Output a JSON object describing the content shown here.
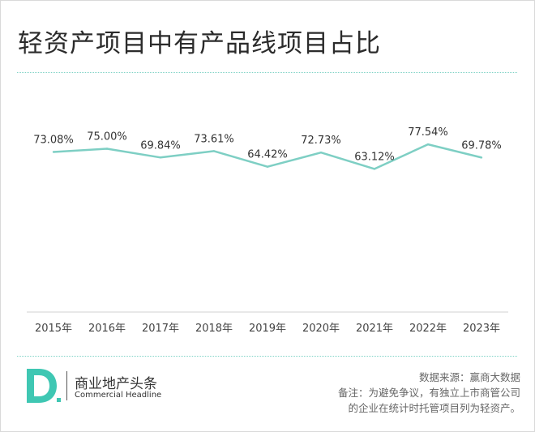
{
  "title": "轻资产项目中有产品线项目占比",
  "chart_data": {
    "type": "line",
    "title": "轻资产项目中有产品线项目占比",
    "categories": [
      "2015年",
      "2016年",
      "2017年",
      "2018年",
      "2019年",
      "2020年",
      "2021年",
      "2022年",
      "2023年"
    ],
    "values": [
      73.08,
      75.0,
      69.84,
      73.61,
      64.42,
      72.73,
      63.12,
      77.54,
      69.78
    ],
    "data_labels": [
      "73.08%",
      "75.00%",
      "69.84%",
      "73.61%",
      "64.42%",
      "72.73%",
      "63.12%",
      "77.54%",
      "69.78%"
    ],
    "value_unit": "%",
    "grid": false,
    "legend": "none",
    "line_color": "#7ecfc4"
  },
  "footer": {
    "brand_cn": "商业地产头条",
    "brand_en": "Commercial Headline",
    "logo_letter": "D",
    "source": "数据来源：赢商大数据",
    "note_line1": "备注：为避免争议，有独立上市商管公司",
    "note_line2": "的企业在统计时托管项目列为轻资产。"
  },
  "colors": {
    "accent": "#7ecfc4",
    "logo_teal": "#3fc7b3",
    "axis": "#d0d0d0",
    "text": "#333333"
  }
}
